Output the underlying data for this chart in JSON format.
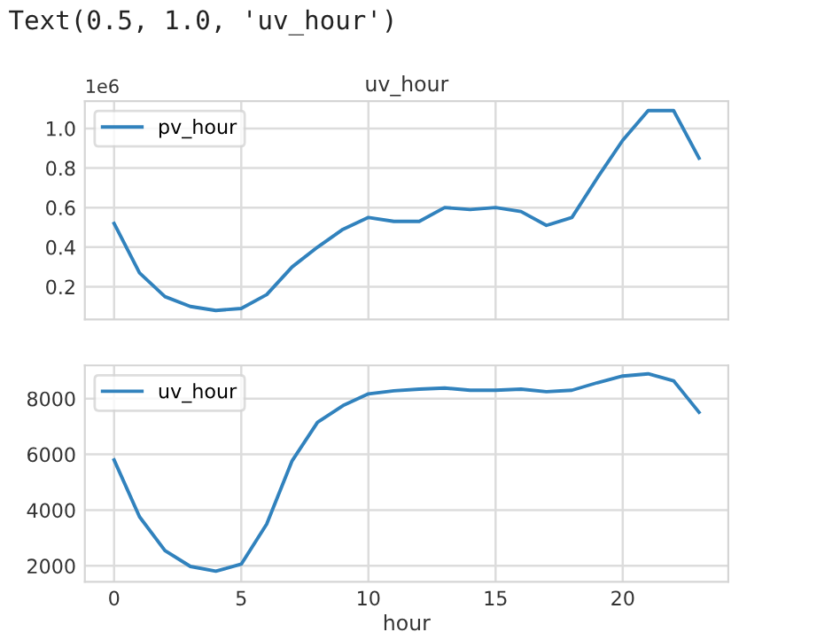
{
  "chart_data": [
    {
      "type": "line",
      "title": "uv_hour",
      "annotations": [
        "Text(0.5, 1.0, 'uv_hour')",
        "1e6"
      ],
      "x": [
        0,
        1,
        2,
        3,
        4,
        5,
        6,
        7,
        8,
        9,
        10,
        11,
        12,
        13,
        14,
        15,
        16,
        17,
        18,
        19,
        20,
        21,
        22,
        23
      ],
      "series": [
        {
          "name": "pv_hour",
          "color": "#3182bd",
          "values": [
            0.52,
            0.27,
            0.15,
            0.1,
            0.08,
            0.09,
            0.16,
            0.3,
            0.4,
            0.49,
            0.55,
            0.53,
            0.53,
            0.6,
            0.59,
            0.6,
            0.58,
            0.51,
            0.55,
            0.75,
            0.94,
            1.09,
            1.09,
            0.85
          ]
        }
      ],
      "xlim": [
        -1.15,
        24.15
      ],
      "xticks": [
        0,
        5,
        10,
        15,
        20
      ],
      "ylim": [
        0.035,
        1.138
      ],
      "yticks": [
        0.2,
        0.4,
        0.6,
        0.8,
        {
          "value": 1.0,
          "label": "1.0"
        }
      ],
      "tick_labels": "y",
      "grid": true,
      "legend": "top left"
    },
    {
      "type": "line",
      "xlabel": "hour",
      "x": [
        0,
        1,
        2,
        3,
        4,
        5,
        6,
        7,
        8,
        9,
        10,
        11,
        12,
        13,
        14,
        15,
        16,
        17,
        18,
        19,
        20,
        21,
        22,
        23
      ],
      "series": [
        {
          "name": "uv_hour",
          "color": "#3182bd",
          "values": [
            5800,
            3760,
            2550,
            1980,
            1810,
            2060,
            3500,
            5770,
            7150,
            7750,
            8170,
            8280,
            8340,
            8380,
            8300,
            8300,
            8340,
            8250,
            8300,
            8570,
            8810,
            8890,
            8640,
            7510
          ]
        }
      ],
      "xlim": [
        -1.15,
        24.15
      ],
      "xticks": [
        0,
        5,
        10,
        15,
        20
      ],
      "ylim": [
        1430,
        9190
      ],
      "yticks": [
        2000,
        4000,
        6000,
        8000
      ],
      "grid": true,
      "legend": "top left"
    }
  ]
}
